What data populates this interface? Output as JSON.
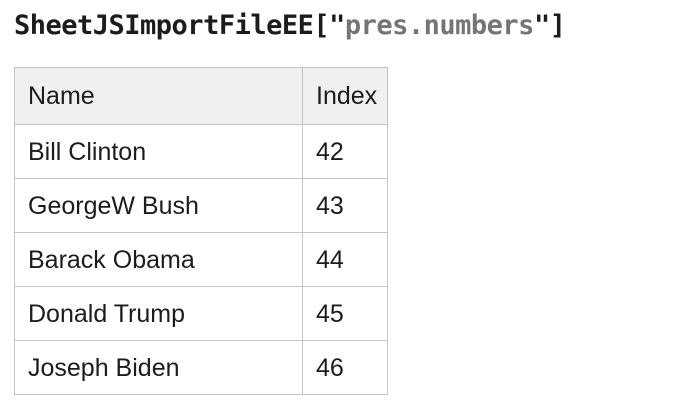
{
  "colors": {
    "page-bg": "#ffffff",
    "text": "#1c1c1e",
    "filename-gray": "#757575",
    "header-bg": "#f0f0f0",
    "border": "#c4c4c4"
  },
  "title": {
    "component": "SheetJSImportFileEE",
    "open_delim": "[\"",
    "filename": "pres.numbers",
    "close_delim": "\"]"
  },
  "table": {
    "columns": [
      "Name",
      "Index"
    ],
    "rows": [
      {
        "name": "Bill Clinton",
        "index": "42"
      },
      {
        "name": "GeorgeW Bush",
        "index": "43"
      },
      {
        "name": "Barack Obama",
        "index": "44"
      },
      {
        "name": "Donald Trump",
        "index": "45"
      },
      {
        "name": "Joseph Biden",
        "index": "46"
      }
    ]
  }
}
